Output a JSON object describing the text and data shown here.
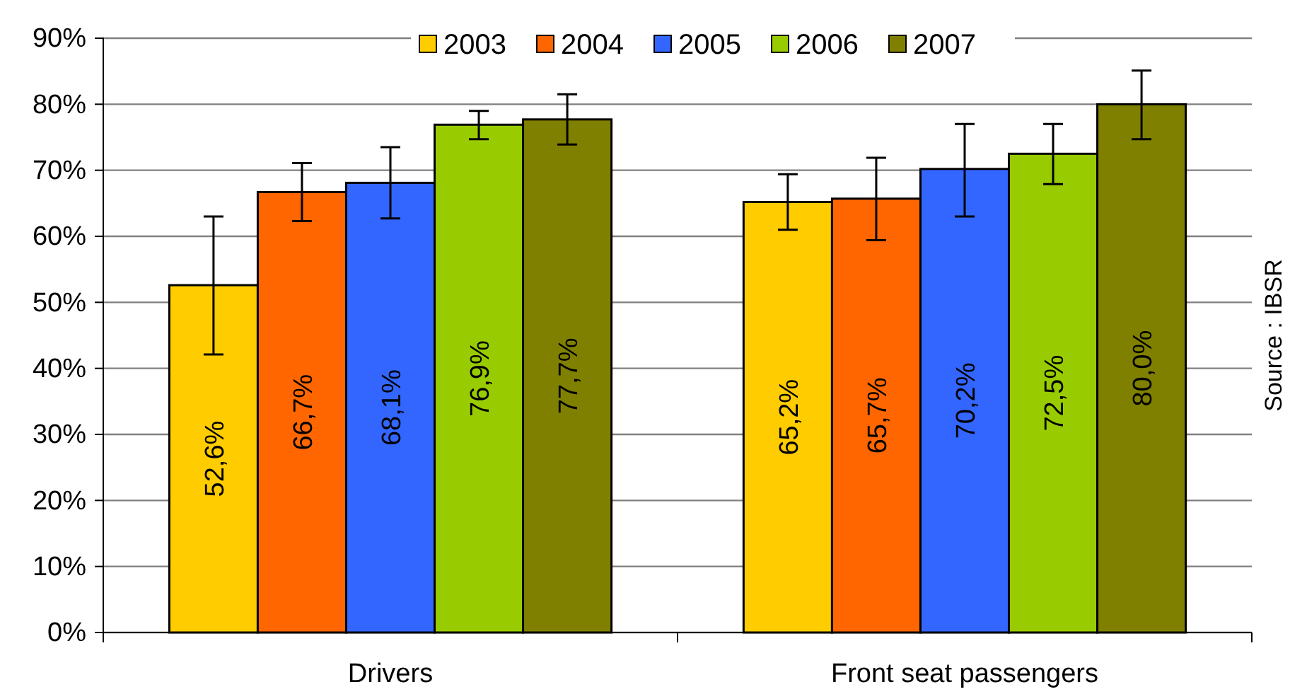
{
  "chart_data": {
    "type": "bar",
    "categories": [
      "Drivers",
      "Front seat passengers"
    ],
    "series": [
      {
        "name": "2003",
        "color": "#ffcc00",
        "values": [
          52.6,
          65.2
        ],
        "errors": [
          [
            42.1,
            63.0
          ],
          [
            61.0,
            69.4
          ]
        ],
        "value_labels": [
          "52,6%",
          "65,2%"
        ]
      },
      {
        "name": "2004",
        "color": "#ff6600",
        "values": [
          66.7,
          65.7
        ],
        "errors": [
          [
            62.3,
            71.1
          ],
          [
            59.4,
            71.9
          ]
        ],
        "value_labels": [
          "66,7%",
          "65,7%"
        ]
      },
      {
        "name": "2005",
        "color": "#3366ff",
        "values": [
          68.1,
          70.2
        ],
        "errors": [
          [
            62.7,
            73.5
          ],
          [
            63.0,
            77.0
          ]
        ],
        "value_labels": [
          "68,1%",
          "70,2%"
        ]
      },
      {
        "name": "2006",
        "color": "#99cc00",
        "values": [
          76.9,
          72.5
        ],
        "errors": [
          [
            74.7,
            79.0
          ],
          [
            67.9,
            77.0
          ]
        ],
        "value_labels": [
          "76,9%",
          "72,5%"
        ]
      },
      {
        "name": "2007",
        "color": "#808000",
        "values": [
          77.7,
          80.0
        ],
        "errors": [
          [
            73.9,
            81.5
          ],
          [
            74.7,
            85.1
          ]
        ],
        "value_labels": [
          "77,7%",
          "80,0%"
        ]
      }
    ],
    "ylim": [
      0,
      90
    ],
    "yticks": [
      {
        "value": 0,
        "label": "0%"
      },
      {
        "value": 10,
        "label": "10%"
      },
      {
        "value": 20,
        "label": "20%"
      },
      {
        "value": 30,
        "label": "30%"
      },
      {
        "value": 40,
        "label": "40%"
      },
      {
        "value": 50,
        "label": "50%"
      },
      {
        "value": 60,
        "label": "60%"
      },
      {
        "value": 70,
        "label": "70%"
      },
      {
        "value": 80,
        "label": "80%"
      },
      {
        "value": 90,
        "label": "90%"
      }
    ],
    "grid": "y",
    "legend": "top",
    "annotations": [
      "Source : IBSR"
    ]
  }
}
